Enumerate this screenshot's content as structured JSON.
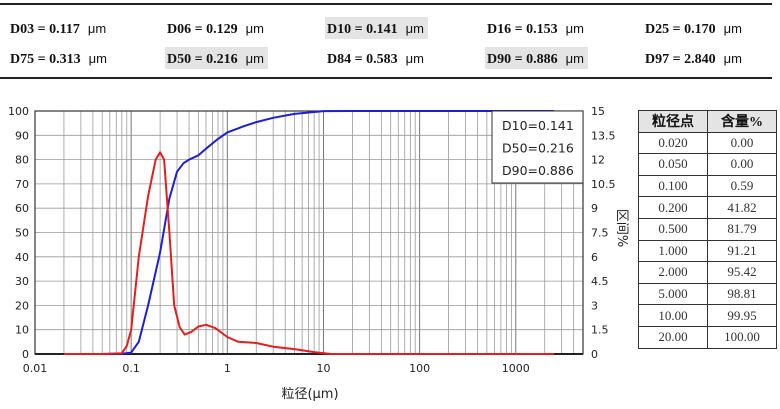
{
  "summary": {
    "unit": "μm",
    "rows": [
      [
        {
          "label": "D03 = 0.117",
          "hl": false
        },
        {
          "label": "D06 = 0.129",
          "hl": false
        },
        {
          "label": "D10 = 0.141",
          "hl": true
        },
        {
          "label": "D16 = 0.153",
          "hl": false
        },
        {
          "label": "D25 = 0.170",
          "hl": false
        }
      ],
      [
        {
          "label": "D75 = 0.313",
          "hl": false
        },
        {
          "label": "D50 = 0.216",
          "hl": true
        },
        {
          "label": "D84 = 0.583",
          "hl": false
        },
        {
          "label": "D90 = 0.886",
          "hl": true
        },
        {
          "label": "D97 = 2.840",
          "hl": false
        }
      ]
    ]
  },
  "chart_data": {
    "type": "line",
    "xlabel": "粒径(μm)",
    "ylabel": "",
    "y2label": "区间%",
    "xscale": "log",
    "xlim": [
      0.01,
      5000
    ],
    "xticks": [
      "0.01",
      "0.1",
      "1",
      "10",
      "100",
      "1000"
    ],
    "ylim": [
      0,
      100
    ],
    "yticks": [
      "0",
      "10",
      "20",
      "30",
      "40",
      "50",
      "60",
      "70",
      "80",
      "90",
      "100"
    ],
    "y2lim": [
      0,
      15
    ],
    "y2ticks": [
      "0",
      "1.5",
      "3",
      "4.5",
      "6",
      "7.5",
      "9",
      "10.5",
      "12",
      "13.5",
      "15"
    ],
    "grid": true,
    "legend_box": [
      "D10=0.141",
      "D50=0.216",
      "D90=0.886"
    ],
    "legend_placement": "top-right",
    "series": [
      {
        "axis": "left",
        "color": "#1f1fd0",
        "x": [
          0.02,
          0.05,
          0.08,
          0.1,
          0.12,
          0.15,
          0.2,
          0.25,
          0.3,
          0.35,
          0.4,
          0.5,
          0.6,
          0.8,
          1,
          1.5,
          2,
          3,
          5,
          10,
          20,
          100,
          1000,
          2500
        ],
        "y": [
          0,
          0,
          0.1,
          0.59,
          5,
          20,
          41.82,
          64,
          75,
          78.5,
          80,
          81.79,
          84.5,
          88.5,
          91.21,
          93.8,
          95.42,
          97.2,
          98.81,
          99.95,
          100,
          100,
          100,
          100
        ]
      },
      {
        "axis": "right",
        "color": "#e02020",
        "x": [
          0.02,
          0.05,
          0.08,
          0.09,
          0.1,
          0.12,
          0.15,
          0.18,
          0.2,
          0.22,
          0.25,
          0.28,
          0.32,
          0.36,
          0.42,
          0.5,
          0.6,
          0.75,
          1,
          1.3,
          2,
          3,
          5,
          8,
          12,
          100,
          1000,
          2500
        ],
        "y": [
          0,
          0,
          0.05,
          0.5,
          1.5,
          6,
          9.75,
          12,
          12.45,
          12,
          7.5,
          3,
          1.65,
          1.2,
          1.35,
          1.7,
          1.8,
          1.6,
          1.05,
          0.75,
          0.68,
          0.45,
          0.3,
          0.12,
          0,
          0,
          0,
          0
        ]
      }
    ]
  },
  "points_table": {
    "headers": [
      "粒径点",
      "含量%"
    ],
    "rows": [
      [
        "0.020",
        "0.00"
      ],
      [
        "0.050",
        "0.00"
      ],
      [
        "0.100",
        "0.59"
      ],
      [
        "0.200",
        "41.82"
      ],
      [
        "0.500",
        "81.79"
      ],
      [
        "1.000",
        "91.21"
      ],
      [
        "2.000",
        "95.42"
      ],
      [
        "5.000",
        "98.81"
      ],
      [
        "10.00",
        "99.95"
      ],
      [
        "20.00",
        "100.00"
      ]
    ]
  }
}
